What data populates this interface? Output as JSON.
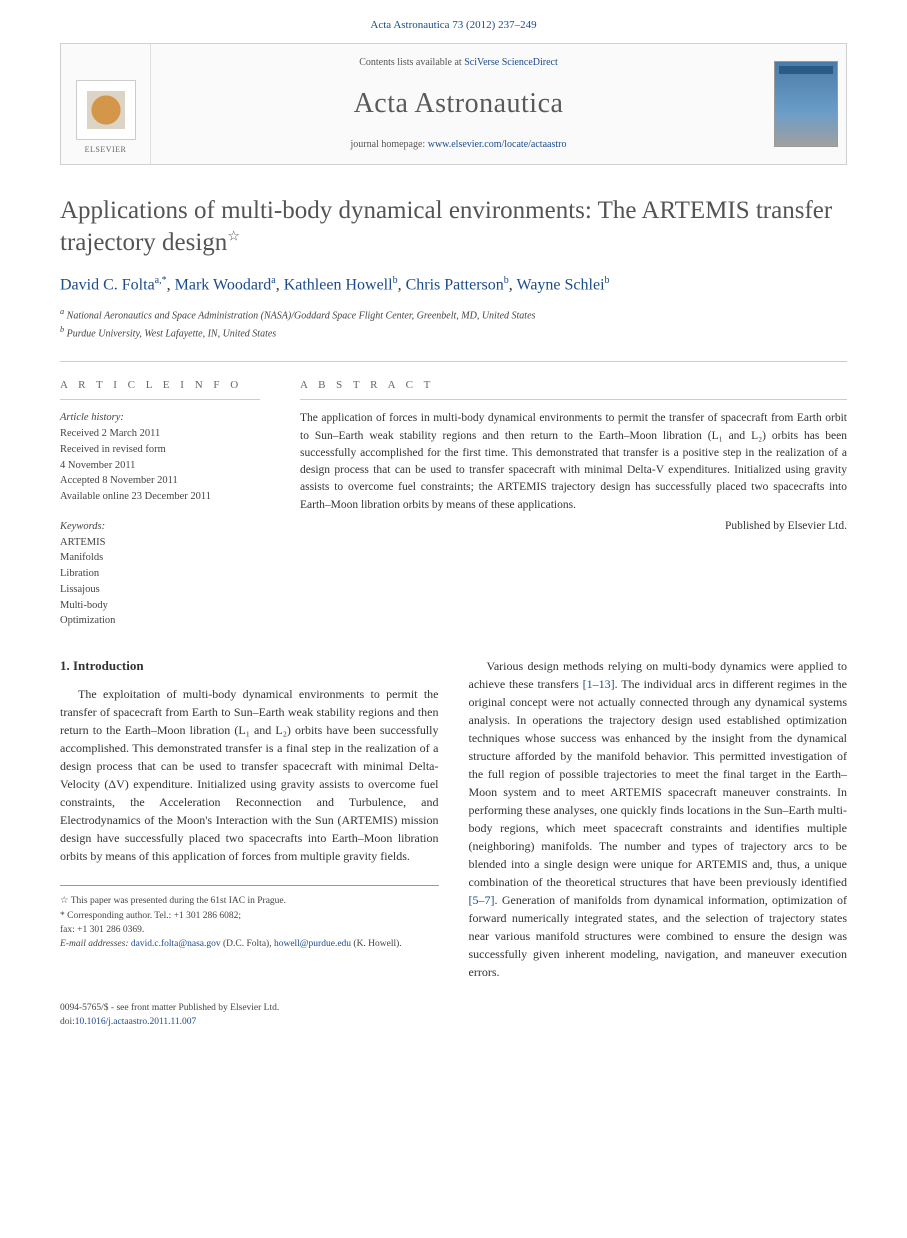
{
  "citation": "Acta Astronautica 73 (2012) 237–249",
  "banner": {
    "contents_prefix": "Contents lists available at ",
    "contents_link": "SciVerse ScienceDirect",
    "journal": "Acta Astronautica",
    "homepage_prefix": "journal homepage: ",
    "homepage_link": "www.elsevier.com/locate/actaastro",
    "publisher": "ELSEVIER"
  },
  "title": "Applications of multi-body dynamical environments: The ARTEMIS transfer trajectory design",
  "title_star": "☆",
  "authors_raw": "David C. Folta",
  "authors": [
    {
      "name": "David C. Folta",
      "sup": "a,*"
    },
    {
      "name": "Mark Woodard",
      "sup": "a"
    },
    {
      "name": "Kathleen Howell",
      "sup": "b"
    },
    {
      "name": "Chris Patterson",
      "sup": "b"
    },
    {
      "name": "Wayne Schlei",
      "sup": "b"
    }
  ],
  "affiliations": [
    {
      "sup": "a",
      "text": "National Aeronautics and Space Administration (NASA)/Goddard Space Flight Center, Greenbelt, MD, United States"
    },
    {
      "sup": "b",
      "text": "Purdue University, West Lafayette, IN, United States"
    }
  ],
  "info": {
    "article_info_label": "A R T I C L E   I N F O",
    "abstract_label": "A B S T R A C T",
    "history_label": "Article history:",
    "history": [
      "Received 2 March 2011",
      "Received in revised form",
      "4 November 2011",
      "Accepted 8 November 2011",
      "Available online 23 December 2011"
    ],
    "keywords_label": "Keywords:",
    "keywords": [
      "ARTEMIS",
      "Manifolds",
      "Libration",
      "Lissajous",
      "Multi-body",
      "Optimization"
    ],
    "abstract": "The application of forces in multi-body dynamical environments to permit the transfer of spacecraft from Earth orbit to Sun–Earth weak stability regions and then return to the Earth–Moon libration (L₁ and L₂) orbits has been successfully accomplished for the first time. This demonstrated that transfer is a positive step in the realization of a design process that can be used to transfer spacecraft with minimal Delta-V expenditures. Initialized using gravity assists to overcome fuel constraints; the ARTEMIS trajectory design has successfully placed two spacecrafts into Earth–Moon libration orbits by means of these applications.",
    "published_by": "Published by Elsevier Ltd."
  },
  "body": {
    "intro_head": "1.  Introduction",
    "col1": "The exploitation of multi-body dynamical environments to permit the transfer of spacecraft from Earth to Sun–Earth weak stability regions and then return to the Earth–Moon libration (L₁ and L₂) orbits have been successfully accomplished. This demonstrated transfer is a final step in the realization of a design process that can be used to transfer spacecraft with minimal Delta-Velocity (ΔV) expenditure. Initialized using gravity assists to overcome fuel constraints, the Acceleration Reconnection and Turbulence, and Electrodynamics of the Moon's Interaction with the Sun (ARTEMIS) mission design have successfully placed two spacecrafts into Earth–Moon libration orbits by means of this application of forces from multiple gravity fields.",
    "col2a": "Various design methods relying on multi-body dynamics were applied to achieve these transfers ",
    "col2_ref": "[1–13]",
    "col2b": ". The individual arcs in different regimes in the original concept were not actually connected through any dynamical systems analysis. In operations the trajectory design used established optimization techniques whose success was enhanced by the insight from the dynamical structure afforded by the manifold behavior. This permitted investigation of the full region of possible trajectories to meet the final target in the Earth–Moon system and to meet ARTEMIS spacecraft maneuver constraints. In performing these analyses, one quickly finds locations in the Sun–Earth multi-body regions, which meet spacecraft constraints and identifies multiple (neighboring) manifolds. The number and types of trajectory arcs to be blended into a single design were unique for ARTEMIS and, thus, a unique combination of the theoretical structures that have been previously identified ",
    "col2_ref2": "[5–7]",
    "col2c": ". Generation of manifolds from dynamical information, optimization of forward numerically integrated states, and the selection of trajectory states near various manifold structures were combined to ensure the design was successfully given inherent modeling, navigation, and maneuver execution errors."
  },
  "footnotes": {
    "star": "☆ This paper was presented during the 61st IAC in Prague.",
    "corr_label": "* Corresponding author. Tel.: +1 301 286 6082;",
    "fax": "fax: +1 301 286 0369.",
    "email_label": "E-mail addresses:",
    "email1": "david.c.folta@nasa.gov",
    "email1_name": " (D.C. Folta),",
    "email2": "howell@purdue.edu",
    "email2_name": " (K. Howell)."
  },
  "copyright": {
    "line1": "0094-5765/$ - see front matter Published by Elsevier Ltd.",
    "doi_prefix": "doi:",
    "doi": "10.1016/j.actaastro.2011.11.007"
  }
}
